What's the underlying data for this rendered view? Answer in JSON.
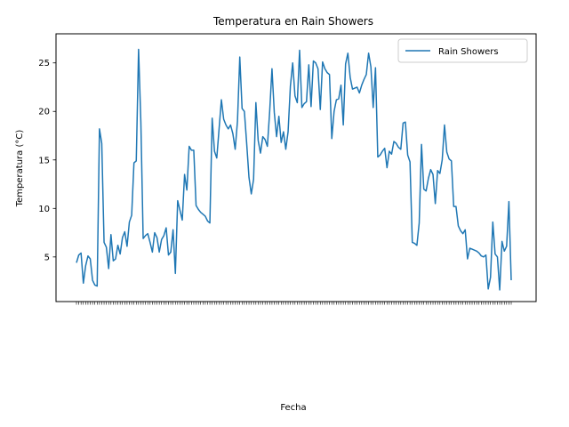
{
  "chart_data": {
    "type": "line",
    "title": "Temperatura en Rain Showers",
    "xlabel": "Fecha",
    "ylabel": "Temperatura (°C)",
    "ylim": [
      0.4,
      28.0
    ],
    "yticks": [
      5,
      10,
      15,
      20,
      25
    ],
    "grid": false,
    "legend_position": "top-right",
    "x_tick_labels_visible": false,
    "series": [
      {
        "name": "Rain Showers",
        "color": "#1f77b4",
        "values": [
          4.4,
          5.2,
          5.4,
          2.3,
          4.1,
          5.1,
          4.8,
          2.6,
          2.1,
          2.0,
          18.2,
          16.7,
          6.5,
          6.0,
          3.8,
          7.3,
          4.6,
          4.8,
          6.2,
          5.3,
          7.0,
          7.6,
          6.1,
          8.6,
          9.3,
          14.7,
          14.9,
          26.4,
          18.9,
          6.9,
          7.2,
          7.4,
          6.5,
          5.5,
          7.5,
          7.0,
          5.5,
          6.8,
          7.2,
          8.0,
          5.2,
          5.5,
          7.8,
          3.3,
          10.8,
          9.8,
          8.8,
          13.5,
          11.9,
          16.4,
          16.0,
          16.0,
          10.3,
          9.9,
          9.6,
          9.4,
          9.2,
          8.7,
          8.5,
          19.3,
          15.9,
          15.2,
          18.2,
          21.2,
          19.2,
          18.6,
          18.2,
          18.6,
          17.7,
          16.1,
          19.0,
          25.6,
          20.3,
          20.0,
          16.7,
          13.2,
          11.5,
          13.0,
          20.9,
          17.0,
          15.7,
          17.4,
          17.1,
          16.4,
          20.0,
          24.4,
          19.9,
          17.4,
          19.5,
          16.8,
          17.9,
          16.1,
          17.9,
          22.6,
          25.0,
          21.6,
          20.9,
          26.3,
          20.4,
          20.8,
          21.0,
          24.8,
          20.5,
          25.2,
          25.0,
          24.4,
          20.2,
          25.1,
          24.4,
          24.0,
          23.8,
          17.2,
          20.0,
          21.2,
          21.3,
          22.7,
          18.6,
          24.9,
          26.0,
          23.5,
          22.3,
          22.4,
          22.5,
          21.9,
          22.7,
          23.3,
          23.8,
          26.0,
          24.6,
          20.4,
          24.5,
          15.3,
          15.5,
          15.9,
          16.2,
          14.2,
          15.9,
          15.6,
          16.9,
          16.7,
          16.3,
          16.1,
          18.8,
          18.9,
          15.5,
          14.8,
          6.5,
          6.4,
          6.2,
          8.5,
          16.6,
          12.0,
          11.8,
          13.1,
          14.0,
          13.5,
          10.5,
          13.9,
          13.6,
          15.0,
          18.6,
          15.8,
          15.1,
          14.9,
          10.2,
          10.2,
          8.2,
          7.7,
          7.4,
          7.8,
          4.8,
          5.9,
          5.8,
          5.7,
          5.6,
          5.4,
          5.1,
          5.0,
          5.2,
          1.7,
          2.9,
          8.6,
          5.3,
          5.0,
          1.6,
          6.6,
          5.6,
          6.1,
          10.7,
          2.6
        ]
      }
    ]
  }
}
